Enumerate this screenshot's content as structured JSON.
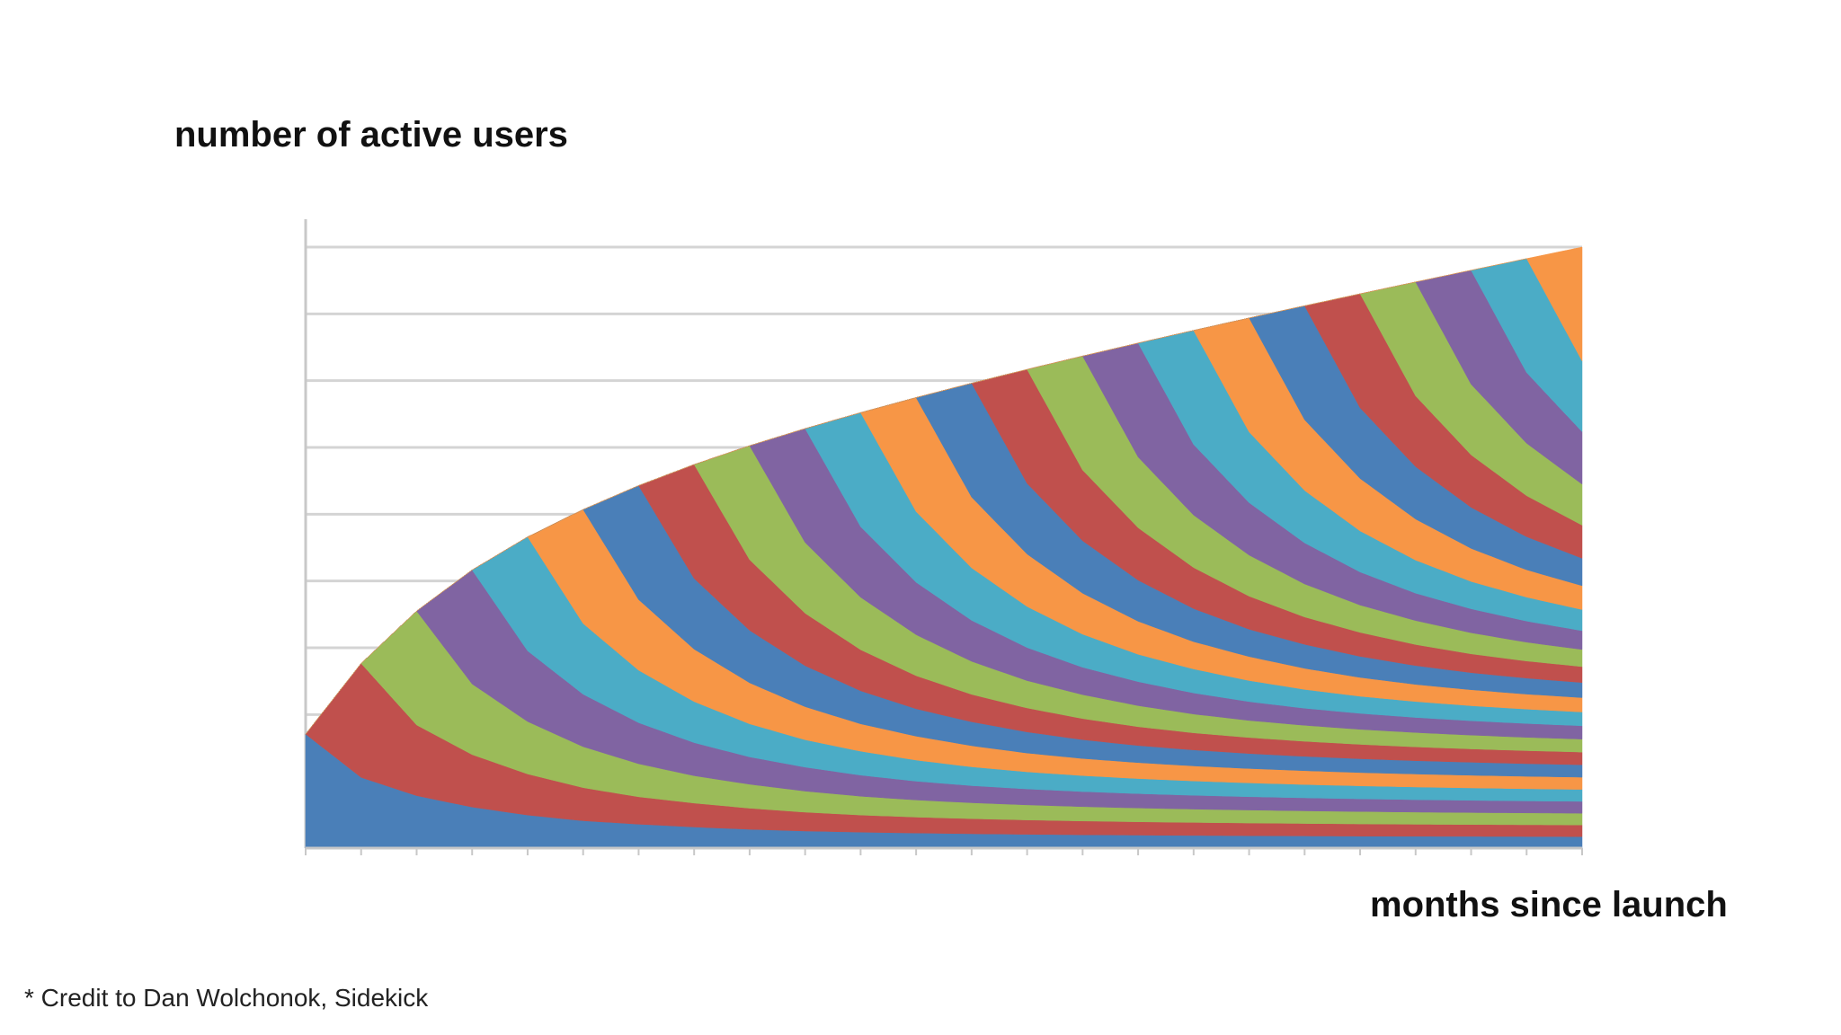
{
  "chart_data": {
    "type": "area",
    "stacked": true,
    "ylabel": "number of active users",
    "xlabel": "months since launch",
    "x_ticks": 24,
    "y_gridlines": 9,
    "grid": true,
    "note": "* Credit to Dan Wolchonok, Sidekick",
    "cohort_count": 24,
    "first_month_users": 0.058,
    "cohort_initial_size": 0.058,
    "retention_curve": [
      1.0,
      0.62,
      0.46,
      0.36,
      0.29,
      0.24,
      0.21,
      0.185,
      0.165,
      0.15,
      0.14,
      0.132,
      0.126,
      0.121,
      0.117,
      0.114,
      0.111,
      0.109,
      0.107,
      0.105,
      0.104,
      0.103,
      0.102,
      0.101
    ],
    "series_colors": [
      "#4a7fb8",
      "#c0504d",
      "#9bbb59",
      "#8064a2",
      "#4bacc6",
      "#f79646"
    ],
    "axis_color": "#c8c8c8",
    "grid_color": "#d4d4d4"
  },
  "labels": {
    "ylabel": "number of active users",
    "xlabel": "months since launch",
    "credit": "* Credit to Dan Wolchonok, Sidekick"
  }
}
